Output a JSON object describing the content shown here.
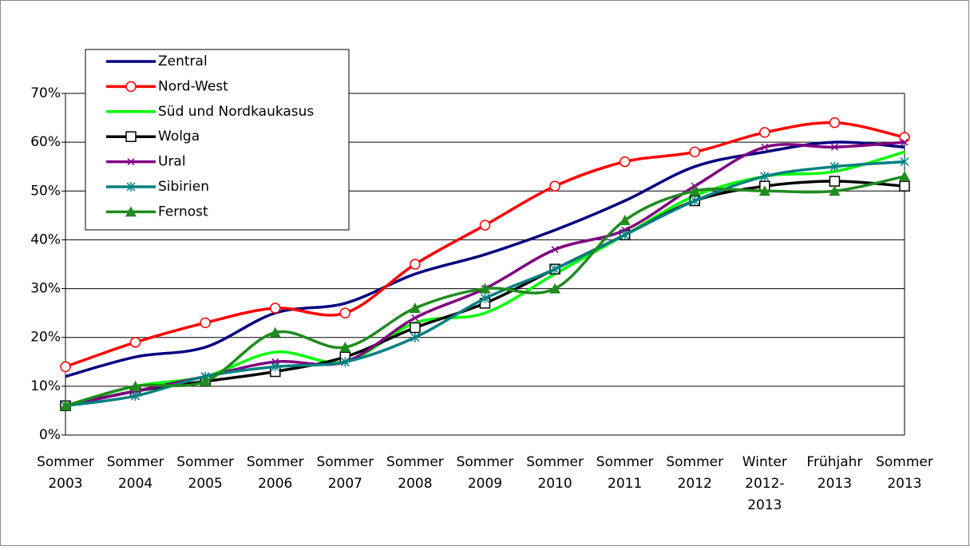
{
  "chart_data": {
    "type": "line",
    "categories": [
      [
        "Sommer",
        "2003"
      ],
      [
        "Sommer",
        "2004"
      ],
      [
        "Sommer",
        "2005"
      ],
      [
        "Sommer",
        "2006"
      ],
      [
        "Sommer",
        "2007"
      ],
      [
        "Sommer",
        "2008"
      ],
      [
        "Sommer",
        "2009"
      ],
      [
        "Sommer",
        "2010"
      ],
      [
        "Sommer",
        "2011"
      ],
      [
        "Sommer",
        "2012"
      ],
      [
        "Winter",
        "2012-",
        "2013"
      ],
      [
        "Frühjahr",
        "2013"
      ],
      [
        "Sommer",
        "2013"
      ]
    ],
    "series": [
      {
        "name": "Zentral",
        "color": "#000080",
        "marker": "none",
        "values": [
          12,
          16,
          18,
          25,
          27,
          33,
          37,
          42,
          48,
          55,
          58,
          60,
          59
        ]
      },
      {
        "name": "Nord-West",
        "color": "#ff0000",
        "marker": "circle",
        "values": [
          14,
          19,
          23,
          26,
          25,
          35,
          43,
          51,
          56,
          58,
          62,
          64,
          61
        ]
      },
      {
        "name": "Süd und Nordkaukasus",
        "color": "#00ff00",
        "marker": "none",
        "values": [
          6,
          10,
          12,
          17,
          15,
          23,
          25,
          33,
          41,
          49,
          53,
          54,
          58
        ]
      },
      {
        "name": "Wolga",
        "color": "#000000",
        "marker": "square",
        "values": [
          6,
          9,
          11,
          13,
          16,
          22,
          27,
          34,
          41,
          48,
          51,
          52,
          51
        ]
      },
      {
        "name": "Ural",
        "color": "#800080",
        "marker": "x",
        "values": [
          6,
          9,
          12,
          15,
          15,
          24,
          30,
          38,
          42,
          51,
          59,
          59,
          60
        ]
      },
      {
        "name": "Sibirien",
        "color": "#008080",
        "marker": "star",
        "values": [
          6,
          8,
          12,
          14,
          15,
          20,
          28,
          34,
          41,
          48,
          53,
          55,
          56
        ]
      },
      {
        "name": "Fernost",
        "color": "#1e8c1e",
        "marker": "triangle",
        "values": [
          6,
          10,
          11,
          21,
          18,
          26,
          30,
          30,
          44,
          50,
          50,
          50,
          53
        ]
      }
    ],
    "ylim": [
      0,
      70
    ],
    "yticks": [
      {
        "value": 0,
        "label": "0%"
      },
      {
        "value": 10,
        "label": "10%"
      },
      {
        "value": 20,
        "label": "20%"
      },
      {
        "value": 30,
        "label": "30%"
      },
      {
        "value": 40,
        "label": "40%"
      },
      {
        "value": 50,
        "label": "50%"
      },
      {
        "value": 60,
        "label": "60%"
      },
      {
        "value": 70,
        "label": "70%"
      }
    ],
    "grid": true
  }
}
